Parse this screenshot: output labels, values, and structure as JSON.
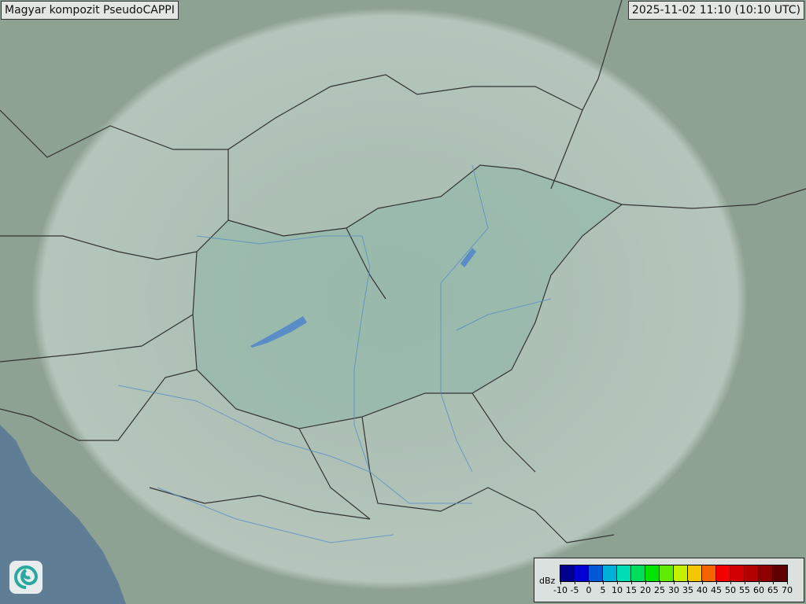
{
  "header": {
    "title": "Magyar kompozit  PseudoCAPPI",
    "timestamp": "2025-11-02 11:10 (10:10 UTC)"
  },
  "legend": {
    "unit": "dBz",
    "ticks": [
      "-10",
      "-5",
      "0",
      "5",
      "10",
      "15",
      "20",
      "25",
      "30",
      "35",
      "40",
      "45",
      "50",
      "55",
      "60",
      "65",
      "70"
    ],
    "colors": [
      "#00008c",
      "#0000d4",
      "#0058d4",
      "#00b0d8",
      "#00dcb4",
      "#00dc5c",
      "#00e400",
      "#60ec00",
      "#c4f000",
      "#f4c800",
      "#f46400",
      "#f40000",
      "#d20000",
      "#b00000",
      "#8c0000",
      "#600000"
    ]
  },
  "colors": {
    "terrain": "#8ea293",
    "coverage": "#c8d8d0",
    "hungary": "#8fb8a8",
    "sea": "#5f7e96",
    "border": "#333333",
    "river": "#5a8cc8"
  },
  "logo": {
    "icon": "radar-swirl-logo"
  }
}
